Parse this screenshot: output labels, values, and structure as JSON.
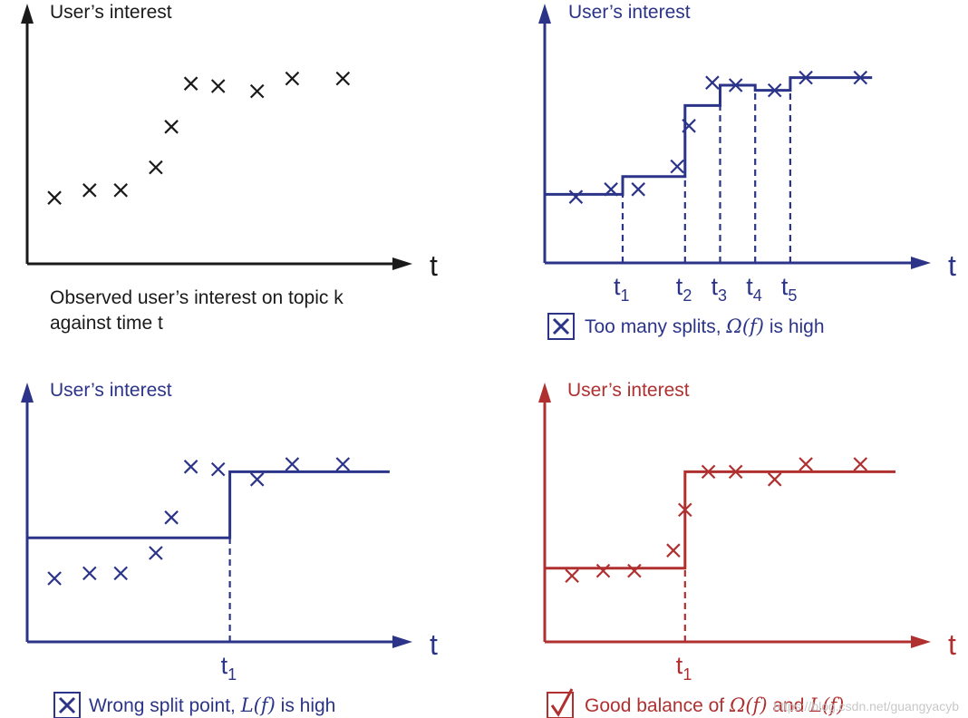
{
  "colors": {
    "black": "#1a1a1a",
    "blue": "#2b3488",
    "red": "#b03030",
    "watermark": "#c8c8c8"
  },
  "watermark": "https://blog.csdn.net/guangyacyb",
  "chart_data": [
    {
      "type": "scatter",
      "ylabel": "User’s interest",
      "xlabel": "t",
      "caption": [
        "Observed user’s interest on topic k",
        "against time t"
      ],
      "ylim": [
        0,
        10
      ],
      "xlim": [
        0,
        10
      ],
      "grid": false,
      "points": [
        {
          "x": 0.7,
          "y": 2.6
        },
        {
          "x": 1.6,
          "y": 2.9
        },
        {
          "x": 2.4,
          "y": 2.9
        },
        {
          "x": 3.3,
          "y": 3.8
        },
        {
          "x": 3.7,
          "y": 5.4
        },
        {
          "x": 4.2,
          "y": 7.1
        },
        {
          "x": 4.9,
          "y": 7.0
        },
        {
          "x": 5.9,
          "y": 6.8
        },
        {
          "x": 6.8,
          "y": 7.3
        },
        {
          "x": 8.1,
          "y": 7.3
        }
      ]
    },
    {
      "type": "line",
      "ylabel": "User’s interest",
      "xlabel": "t",
      "caption_prefix": "Too many splits, ",
      "caption_symbol": "Ω(f)",
      "caption_suffix": " is high",
      "ylim": [
        0,
        10
      ],
      "xlim": [
        0,
        10
      ],
      "grid": false,
      "split_labels": [
        {
          "base": "t",
          "sub": "1"
        },
        {
          "base": "t",
          "sub": "2"
        },
        {
          "base": "t",
          "sub": "3"
        },
        {
          "base": "t",
          "sub": "4"
        },
        {
          "base": "t",
          "sub": "5"
        }
      ],
      "splits": [
        2.0,
        3.6,
        4.5,
        5.4,
        6.3
      ],
      "steps": [
        {
          "x0": 0.0,
          "x1": 2.0,
          "y": 2.7
        },
        {
          "x0": 2.0,
          "x1": 3.6,
          "y": 3.4
        },
        {
          "x0": 3.6,
          "x1": 4.5,
          "y": 6.2
        },
        {
          "x0": 4.5,
          "x1": 5.4,
          "y": 7.0
        },
        {
          "x0": 5.4,
          "x1": 6.3,
          "y": 6.8
        },
        {
          "x0": 6.3,
          "x1": 8.4,
          "y": 7.3
        }
      ],
      "points": [
        {
          "x": 0.8,
          "y": 2.6
        },
        {
          "x": 1.7,
          "y": 2.9
        },
        {
          "x": 2.4,
          "y": 2.9
        },
        {
          "x": 3.4,
          "y": 3.8
        },
        {
          "x": 3.7,
          "y": 5.4
        },
        {
          "x": 4.3,
          "y": 7.1
        },
        {
          "x": 4.9,
          "y": 7.0
        },
        {
          "x": 5.9,
          "y": 6.8
        },
        {
          "x": 6.7,
          "y": 7.3
        },
        {
          "x": 8.1,
          "y": 7.3
        }
      ]
    },
    {
      "type": "line",
      "ylabel": "User’s interest",
      "xlabel": "t",
      "caption_prefix": "Wrong split point, ",
      "caption_symbol": "L(f)",
      "caption_suffix": " is high",
      "ylim": [
        0,
        10
      ],
      "xlim": [
        0,
        10
      ],
      "grid": false,
      "split_labels": [
        {
          "base": "t",
          "sub": "1"
        }
      ],
      "splits": [
        5.2
      ],
      "steps": [
        {
          "x0": 0.0,
          "x1": 5.2,
          "y": 4.1
        },
        {
          "x0": 5.2,
          "x1": 9.3,
          "y": 6.7
        }
      ],
      "points": [
        {
          "x": 0.7,
          "y": 2.5
        },
        {
          "x": 1.6,
          "y": 2.7
        },
        {
          "x": 2.4,
          "y": 2.7
        },
        {
          "x": 3.3,
          "y": 3.5
        },
        {
          "x": 3.7,
          "y": 4.9
        },
        {
          "x": 4.2,
          "y": 6.9
        },
        {
          "x": 4.9,
          "y": 6.8
        },
        {
          "x": 5.9,
          "y": 6.4
        },
        {
          "x": 6.8,
          "y": 7.0
        },
        {
          "x": 8.1,
          "y": 7.0
        }
      ]
    },
    {
      "type": "line",
      "ylabel": "User’s interest",
      "xlabel": "t",
      "caption_prefix": "Good balance of ",
      "caption_symbol": "Ω(f)",
      "caption_middle": " and ",
      "caption_symbol2": "L(f)",
      "ylim": [
        0,
        10
      ],
      "xlim": [
        0,
        10
      ],
      "grid": false,
      "split_labels": [
        {
          "base": "t",
          "sub": "1"
        }
      ],
      "splits": [
        3.6
      ],
      "steps": [
        {
          "x0": 0.0,
          "x1": 3.6,
          "y": 2.9
        },
        {
          "x0": 3.6,
          "x1": 9.0,
          "y": 6.7
        }
      ],
      "points": [
        {
          "x": 0.7,
          "y": 2.6
        },
        {
          "x": 1.5,
          "y": 2.8
        },
        {
          "x": 2.3,
          "y": 2.8
        },
        {
          "x": 3.3,
          "y": 3.6
        },
        {
          "x": 3.6,
          "y": 5.2
        },
        {
          "x": 4.2,
          "y": 6.7
        },
        {
          "x": 4.9,
          "y": 6.7
        },
        {
          "x": 5.9,
          "y": 6.4
        },
        {
          "x": 6.7,
          "y": 7.0
        },
        {
          "x": 8.1,
          "y": 7.0
        }
      ]
    }
  ]
}
